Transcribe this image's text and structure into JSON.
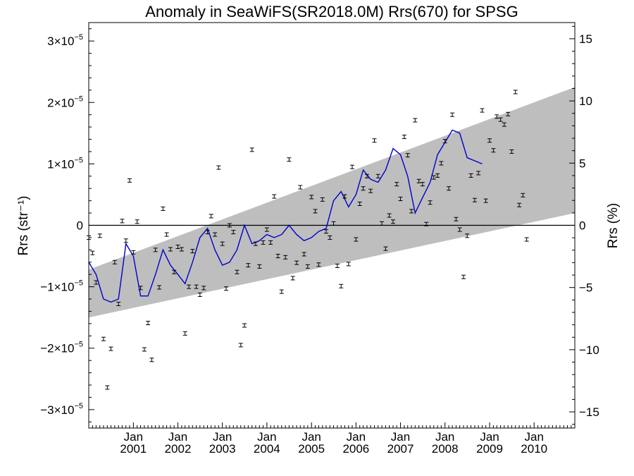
{
  "chart_data": {
    "type": "line",
    "title": "Anomaly in SeaWiFS(SR2018.0M) Rrs(670) for SPSG",
    "ylabel_left": "Rrs (str⁻¹)",
    "ylabel_right": "Rrs (%)",
    "xlabel": "",
    "x_range": [
      "2000-01",
      "2010-12"
    ],
    "y_range_left": [
      -3.3e-05,
      3.3e-05
    ],
    "y_range_right": [
      -16.3,
      16.3
    ],
    "x_tick_labels": [
      {
        "month": "Jan",
        "year": "2001",
        "date": "2001-01"
      },
      {
        "month": "Jan",
        "year": "2002",
        "date": "2002-01"
      },
      {
        "month": "Jan",
        "year": "2003",
        "date": "2003-01"
      },
      {
        "month": "Jan",
        "year": "2004",
        "date": "2004-01"
      },
      {
        "month": "Jan",
        "year": "2005",
        "date": "2005-01"
      },
      {
        "month": "Jan",
        "year": "2006",
        "date": "2006-01"
      },
      {
        "month": "Jan",
        "year": "2007",
        "date": "2007-01"
      },
      {
        "month": "Jan",
        "year": "2008",
        "date": "2008-01"
      },
      {
        "month": "Jan",
        "year": "2009",
        "date": "2009-01"
      },
      {
        "month": "Jan",
        "year": "2010",
        "date": "2010-01"
      }
    ],
    "y_left_ticks": [
      {
        "value": 3e-05,
        "mant": "3",
        "exp": "−5"
      },
      {
        "value": 2e-05,
        "mant": "2",
        "exp": "−5"
      },
      {
        "value": 1e-05,
        "mant": "1",
        "exp": "−5"
      },
      {
        "value": 0,
        "mant": "0",
        "exp": ""
      },
      {
        "value": -1e-05,
        "mant": "−1",
        "exp": "−5"
      },
      {
        "value": -2e-05,
        "mant": "−2",
        "exp": "−5"
      },
      {
        "value": -3e-05,
        "mant": "−3",
        "exp": "−5"
      }
    ],
    "y_right_ticks": [
      {
        "value": 15,
        "label": "15"
      },
      {
        "value": 10,
        "label": "10"
      },
      {
        "value": 5,
        "label": "5"
      },
      {
        "value": 0,
        "label": "0"
      },
      {
        "value": -5,
        "label": "−5"
      },
      {
        "value": -10,
        "label": "−10"
      },
      {
        "value": -15,
        "label": "−15"
      }
    ],
    "zero_line": true,
    "grid": false,
    "colors": {
      "band": "#bebebe",
      "smooth_line": "#0000cc",
      "points": "#000000"
    },
    "band": {
      "start_date": "2000-01",
      "end_date": "2010-12",
      "lower_start": -1.5e-05,
      "upper_start": -7.2e-06,
      "lower_end": 2e-06,
      "upper_end": 2.25e-05
    },
    "monthly_anomaly_series": [
      {
        "x": "2000-01",
        "y": -2e-06
      },
      {
        "x": "2000-02",
        "y": -4.5e-06
      },
      {
        "x": "2000-03",
        "y": -9.3e-06
      },
      {
        "x": "2000-04",
        "y": -1.7e-06
      },
      {
        "x": "2000-05",
        "y": -1.85e-05
      },
      {
        "x": "2000-06",
        "y": -2.64e-05
      },
      {
        "x": "2000-07",
        "y": -2.01e-05
      },
      {
        "x": "2000-08",
        "y": -6e-06
      },
      {
        "x": "2000-09",
        "y": -1.28e-05
      },
      {
        "x": "2000-10",
        "y": 7e-07
      },
      {
        "x": "2000-11",
        "y": -2.5e-06
      },
      {
        "x": "2000-12",
        "y": 7.3e-06
      },
      {
        "x": "2001-01",
        "y": -4.4e-06
      },
      {
        "x": "2001-02",
        "y": 6e-07
      },
      {
        "x": "2001-03",
        "y": -1.02e-05
      },
      {
        "x": "2001-04",
        "y": -2.02e-05
      },
      {
        "x": "2001-05",
        "y": -1.59e-05
      },
      {
        "x": "2001-06",
        "y": -2.19e-05
      },
      {
        "x": "2001-07",
        "y": -4e-06
      },
      {
        "x": "2001-08",
        "y": -1.01e-05
      },
      {
        "x": "2001-09",
        "y": 2.7e-06
      },
      {
        "x": "2001-10",
        "y": -1.5e-06
      },
      {
        "x": "2001-11",
        "y": -3.9e-06
      },
      {
        "x": "2001-12",
        "y": -7.6e-06
      },
      {
        "x": "2002-01",
        "y": -3.5e-06
      },
      {
        "x": "2002-02",
        "y": -3.9e-06
      },
      {
        "x": "2002-03",
        "y": -1.76e-05
      },
      {
        "x": "2002-04",
        "y": -1e-05
      },
      {
        "x": "2002-05",
        "y": -4.2e-06
      },
      {
        "x": "2002-06",
        "y": -1e-05
      },
      {
        "x": "2002-07",
        "y": -1.13e-05
      },
      {
        "x": "2002-08",
        "y": -1.02e-05
      },
      {
        "x": "2002-09",
        "y": -1.1e-06
      },
      {
        "x": "2002-10",
        "y": 1.5e-06
      },
      {
        "x": "2002-11",
        "y": -1.5e-06
      },
      {
        "x": "2002-12",
        "y": 9.4e-06
      },
      {
        "x": "2003-01",
        "y": -3e-06
      },
      {
        "x": "2003-02",
        "y": -1.03e-05
      },
      {
        "x": "2003-03",
        "y": 0.0
      },
      {
        "x": "2003-04",
        "y": -1.1e-06
      },
      {
        "x": "2003-05",
        "y": -7.6e-06
      },
      {
        "x": "2003-06",
        "y": -1.95e-05
      },
      {
        "x": "2003-07",
        "y": -1.63e-05
      },
      {
        "x": "2003-08",
        "y": -6.5e-06
      },
      {
        "x": "2003-09",
        "y": 1.23e-05
      },
      {
        "x": "2003-10",
        "y": -3e-06
      },
      {
        "x": "2003-11",
        "y": -6.7e-06
      },
      {
        "x": "2003-12",
        "y": -2.8e-06
      },
      {
        "x": "2004-01",
        "y": -7e-07
      },
      {
        "x": "2004-02",
        "y": -2.8e-06
      },
      {
        "x": "2004-03",
        "y": 4.7e-06
      },
      {
        "x": "2004-04",
        "y": -5e-06
      },
      {
        "x": "2004-05",
        "y": -1.08e-05
      },
      {
        "x": "2004-06",
        "y": -5.2e-06
      },
      {
        "x": "2004-07",
        "y": 1.07e-05
      },
      {
        "x": "2004-08",
        "y": -8.6e-06
      },
      {
        "x": "2004-09",
        "y": -6.1e-06
      },
      {
        "x": "2004-10",
        "y": 6.2e-06
      },
      {
        "x": "2004-11",
        "y": -4.7e-06
      },
      {
        "x": "2004-12",
        "y": -6.7e-06
      },
      {
        "x": "2005-01",
        "y": 4.6e-06
      },
      {
        "x": "2005-02",
        "y": 2.3e-06
      },
      {
        "x": "2005-03",
        "y": -6.4e-06
      },
      {
        "x": "2005-04",
        "y": 4.2e-06
      },
      {
        "x": "2005-05",
        "y": -1e-06
      },
      {
        "x": "2005-06",
        "y": -2e-06
      },
      {
        "x": "2005-07",
        "y": 3e-07
      },
      {
        "x": "2005-08",
        "y": -6.6e-06
      },
      {
        "x": "2005-09",
        "y": -9.9e-06
      },
      {
        "x": "2005-10",
        "y": 4.7e-06
      },
      {
        "x": "2005-11",
        "y": -6.3e-06
      },
      {
        "x": "2005-12",
        "y": 9.5e-06
      },
      {
        "x": "2006-01",
        "y": -2.3e-06
      },
      {
        "x": "2006-02",
        "y": 3.5e-06
      },
      {
        "x": "2006-03",
        "y": 6e-06
      },
      {
        "x": "2006-04",
        "y": 8e-06
      },
      {
        "x": "2006-05",
        "y": 5.6e-06
      },
      {
        "x": "2006-06",
        "y": 1.38e-05
      },
      {
        "x": "2006-07",
        "y": 8e-06
      },
      {
        "x": "2006-08",
        "y": 3e-07
      },
      {
        "x": "2006-09",
        "y": -3.8e-06
      },
      {
        "x": "2006-10",
        "y": 1.6e-06
      },
      {
        "x": "2006-11",
        "y": 6e-07
      },
      {
        "x": "2006-12",
        "y": 6.7e-06
      },
      {
        "x": "2007-01",
        "y": 4.3e-06
      },
      {
        "x": "2007-02",
        "y": 1.44e-05
      },
      {
        "x": "2007-03",
        "y": 1.14e-05
      },
      {
        "x": "2007-04",
        "y": 2.3e-06
      },
      {
        "x": "2007-05",
        "y": 1.71e-05
      },
      {
        "x": "2007-06",
        "y": 7.2e-06
      },
      {
        "x": "2007-07",
        "y": 6.7e-06
      },
      {
        "x": "2007-08",
        "y": 2e-07
      },
      {
        "x": "2007-09",
        "y": 3.7e-06
      },
      {
        "x": "2007-10",
        "y": 7.8e-06
      },
      {
        "x": "2007-11",
        "y": 8.1e-06
      },
      {
        "x": "2007-12",
        "y": 1.01e-05
      },
      {
        "x": "2008-01",
        "y": 1.37e-05
      },
      {
        "x": "2008-02",
        "y": 6e-06
      },
      {
        "x": "2008-03",
        "y": 1.8e-05
      },
      {
        "x": "2008-04",
        "y": 1e-06
      },
      {
        "x": "2008-05",
        "y": -7e-07
      },
      {
        "x": "2008-06",
        "y": -8.4e-06
      },
      {
        "x": "2008-07",
        "y": -1.7e-06
      },
      {
        "x": "2008-08",
        "y": 8.1e-06
      },
      {
        "x": "2008-09",
        "y": 4.1e-06
      },
      {
        "x": "2008-10",
        "y": 8.5e-06
      },
      {
        "x": "2008-11",
        "y": 1.87e-05
      },
      {
        "x": "2008-12",
        "y": 4e-06
      },
      {
        "x": "2009-01",
        "y": 1.38e-05
      },
      {
        "x": "2009-02",
        "y": 1.22e-05
      },
      {
        "x": "2009-03",
        "y": 1.77e-05
      },
      {
        "x": "2009-04",
        "y": 1.72e-05
      },
      {
        "x": "2009-05",
        "y": 1.64e-05
      },
      {
        "x": "2009-06",
        "y": 1.81e-05
      },
      {
        "x": "2009-07",
        "y": 1.2e-05
      },
      {
        "x": "2009-08",
        "y": 2.17e-05
      },
      {
        "x": "2009-09",
        "y": 3.3e-06
      },
      {
        "x": "2009-10",
        "y": 4.9e-06
      },
      {
        "x": "2009-11",
        "y": -2.3e-06
      }
    ],
    "smoothed_series": [
      {
        "x": "2000-01",
        "y": -6e-06
      },
      {
        "x": "2000-03",
        "y": -8e-06
      },
      {
        "x": "2000-05",
        "y": -1.2e-05
      },
      {
        "x": "2000-07",
        "y": -1.25e-05
      },
      {
        "x": "2000-09",
        "y": -1.2e-05
      },
      {
        "x": "2000-11",
        "y": -3e-06
      },
      {
        "x": "2001-01",
        "y": -5e-06
      },
      {
        "x": "2001-03",
        "y": -1.15e-05
      },
      {
        "x": "2001-05",
        "y": -1.15e-05
      },
      {
        "x": "2001-07",
        "y": -8e-06
      },
      {
        "x": "2001-09",
        "y": -4e-06
      },
      {
        "x": "2001-11",
        "y": -6.5e-06
      },
      {
        "x": "2002-01",
        "y": -8e-06
      },
      {
        "x": "2002-03",
        "y": -9.5e-06
      },
      {
        "x": "2002-05",
        "y": -6e-06
      },
      {
        "x": "2002-07",
        "y": -2e-06
      },
      {
        "x": "2002-09",
        "y": -5e-07
      },
      {
        "x": "2002-11",
        "y": -4e-06
      },
      {
        "x": "2003-01",
        "y": -6.5e-06
      },
      {
        "x": "2003-03",
        "y": -6e-06
      },
      {
        "x": "2003-05",
        "y": -4e-06
      },
      {
        "x": "2003-07",
        "y": 0.0
      },
      {
        "x": "2003-09",
        "y": -3e-06
      },
      {
        "x": "2003-11",
        "y": -2.5e-06
      },
      {
        "x": "2004-01",
        "y": -1.5e-06
      },
      {
        "x": "2004-03",
        "y": -2e-06
      },
      {
        "x": "2004-05",
        "y": -1.5e-06
      },
      {
        "x": "2004-07",
        "y": 0.0
      },
      {
        "x": "2004-09",
        "y": -1.5e-06
      },
      {
        "x": "2004-11",
        "y": -2.5e-06
      },
      {
        "x": "2005-01",
        "y": -2e-06
      },
      {
        "x": "2005-03",
        "y": -1e-06
      },
      {
        "x": "2005-05",
        "y": -5e-07
      },
      {
        "x": "2005-07",
        "y": 4e-06
      },
      {
        "x": "2005-09",
        "y": 5.5e-06
      },
      {
        "x": "2005-11",
        "y": 3e-06
      },
      {
        "x": "2006-01",
        "y": 5e-06
      },
      {
        "x": "2006-03",
        "y": 9e-06
      },
      {
        "x": "2006-05",
        "y": 7.5e-06
      },
      {
        "x": "2006-07",
        "y": 7e-06
      },
      {
        "x": "2006-09",
        "y": 9e-06
      },
      {
        "x": "2006-11",
        "y": 1.25e-05
      },
      {
        "x": "2007-01",
        "y": 1.15e-05
      },
      {
        "x": "2007-03",
        "y": 8e-06
      },
      {
        "x": "2007-05",
        "y": 2e-06
      },
      {
        "x": "2007-07",
        "y": 4.5e-06
      },
      {
        "x": "2007-09",
        "y": 7e-06
      },
      {
        "x": "2007-11",
        "y": 1.15e-05
      },
      {
        "x": "2008-01",
        "y": 1.35e-05
      },
      {
        "x": "2008-03",
        "y": 1.55e-05
      },
      {
        "x": "2008-05",
        "y": 1.5e-05
      },
      {
        "x": "2008-07",
        "y": 1.1e-05
      },
      {
        "x": "2008-09",
        "y": 1.05e-05
      },
      {
        "x": "2008-11",
        "y": 1e-05
      }
    ]
  }
}
